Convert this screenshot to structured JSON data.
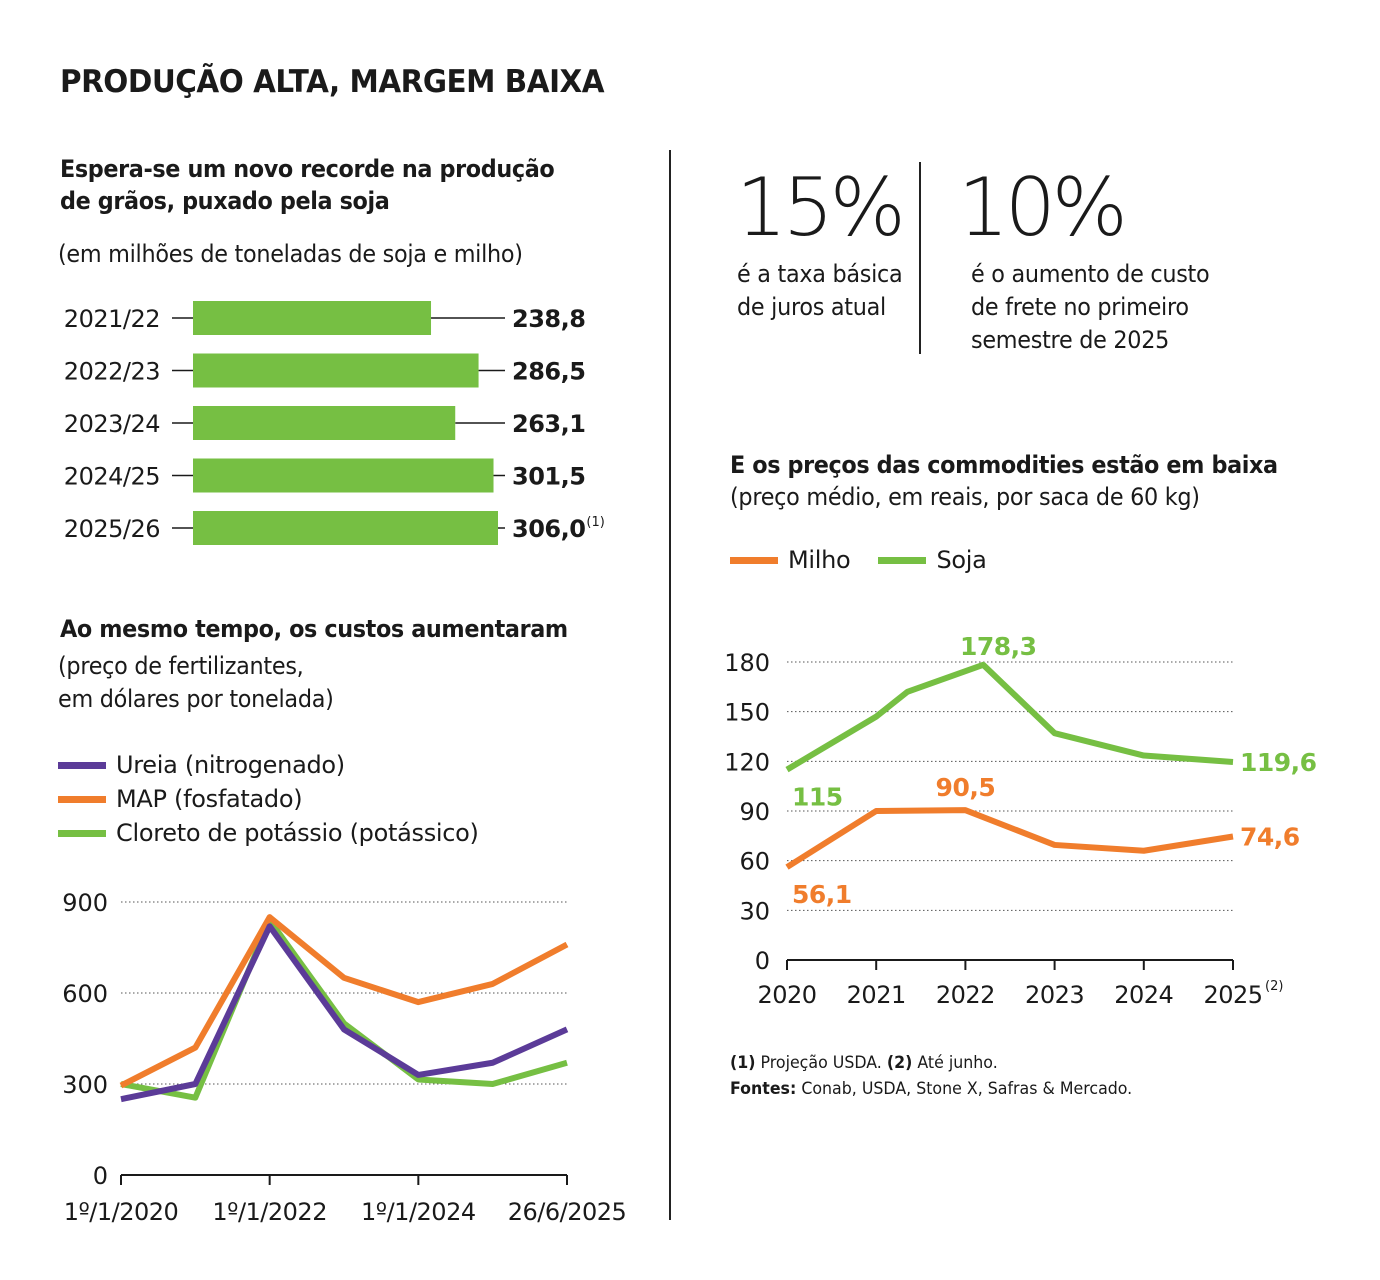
{
  "title": "PRODUÇÃO ALTA, MARGEM BAIXA",
  "colors": {
    "green": "#76bf43",
    "orange": "#f07d2c",
    "purple": "#5b3b98",
    "text": "#1a1a1a"
  },
  "stats": [
    {
      "value": "15%",
      "text": "é a taxa básica de juros atual"
    },
    {
      "value": "10%",
      "text": "é o aumento de custo de frete no primeiro semestre de 2025"
    }
  ],
  "production": {
    "heading": "Espera-se um novo recorde na produção de grãos, puxado pela soja",
    "subheading": "(em milhões de toneladas de soja e milho)",
    "chart_data": {
      "type": "bar",
      "orientation": "horizontal",
      "categories": [
        "2021/22",
        "2022/23",
        "2023/24",
        "2024/25",
        "2025/26"
      ],
      "values": [
        238.8,
        286.5,
        263.1,
        301.5,
        306.0
      ],
      "labels": [
        "238,8",
        "286,5",
        "263,1",
        "301,5",
        "306,0"
      ],
      "footnote_marks": [
        "",
        "",
        "",
        "",
        "(1)"
      ]
    }
  },
  "fertilizers": {
    "heading": "Ao mesmo tempo, os custos aumentaram",
    "subheading_lines": [
      "(preço de fertilizantes,",
      "em dólares por tonelada)"
    ],
    "chart_data": {
      "type": "line",
      "x": [
        "1º/1/2020",
        "1º/1/2021",
        "1º/1/2022",
        "1º/1/2023",
        "1º/1/2024",
        "1º/1/2025",
        "26/6/2025"
      ],
      "x_tick_labels": [
        "1º/1/2020",
        "1º/1/2022",
        "1º/1/2024",
        "26/6/2025"
      ],
      "y_ticks": [
        0,
        300,
        600,
        900
      ],
      "ylim": [
        0,
        900
      ],
      "grid": true,
      "legend_position": "top-left",
      "series": [
        {
          "name": "Ureia (nitrogenado)",
          "color": "#5b3b98",
          "values": [
            250,
            300,
            820,
            480,
            330,
            370,
            480
          ]
        },
        {
          "name": "MAP (fosfatado)",
          "color": "#f07d2c",
          "values": [
            295,
            420,
            850,
            650,
            570,
            630,
            760
          ]
        },
        {
          "name": "Cloreto de potássio (potássico)",
          "color": "#76bf43",
          "values": [
            300,
            255,
            840,
            500,
            315,
            300,
            370
          ]
        }
      ]
    }
  },
  "commodities": {
    "heading": "E os preços das commodities estão em baixa",
    "subheading": "(preço médio, em reais, por saca de 60 kg)",
    "chart_data": {
      "type": "line",
      "x": [
        "2020",
        "2021",
        "2022",
        "2023",
        "2024",
        "2025"
      ],
      "x_tick_labels": [
        "2020",
        "2021",
        "2022",
        "2023",
        "2024",
        "2025"
      ],
      "x_tick_marks": [
        "",
        "",
        "",
        "",
        "",
        "(2)"
      ],
      "y_ticks": [
        0,
        30,
        60,
        90,
        120,
        150,
        180
      ],
      "ylim": [
        0,
        180
      ],
      "grid": true,
      "legend_position": "top-left",
      "series": [
        {
          "name": "Milho",
          "color": "#f07d2c",
          "points": [
            [
              2020.0,
              56.1
            ],
            [
              2021.0,
              90.0
            ],
            [
              2022.0,
              90.5
            ],
            [
              2023.0,
              69.5
            ],
            [
              2024.0,
              66.0
            ],
            [
              2025.0,
              74.6
            ]
          ],
          "annotations": [
            {
              "x": 2020.0,
              "y": 56.1,
              "label": "56,1"
            },
            {
              "x": 2022.0,
              "y": 90.5,
              "label": "90,5"
            },
            {
              "x": 2025.0,
              "y": 74.6,
              "label": "74,6"
            }
          ]
        },
        {
          "name": "Soja",
          "color": "#76bf43",
          "points": [
            [
              2020.0,
              115.0
            ],
            [
              2021.0,
              147.0
            ],
            [
              2021.35,
              162.0
            ],
            [
              2022.2,
              178.3
            ],
            [
              2023.0,
              137.0
            ],
            [
              2024.0,
              123.5
            ],
            [
              2025.0,
              119.6
            ]
          ],
          "annotations": [
            {
              "x": 2020.0,
              "y": 115.0,
              "label": "115"
            },
            {
              "x": 2022.2,
              "y": 178.3,
              "label": "178,3"
            },
            {
              "x": 2025.0,
              "y": 119.6,
              "label": "119,6"
            }
          ]
        }
      ]
    }
  },
  "notes": {
    "n1_mark": "(1)",
    "n1_text": "Projeção USDA.",
    "n2_mark": "(2)",
    "n2_text": "Até junho.",
    "sources_label": "Fontes:",
    "sources_text": "Conab, USDA, Stone X, Safras & Mercado."
  }
}
